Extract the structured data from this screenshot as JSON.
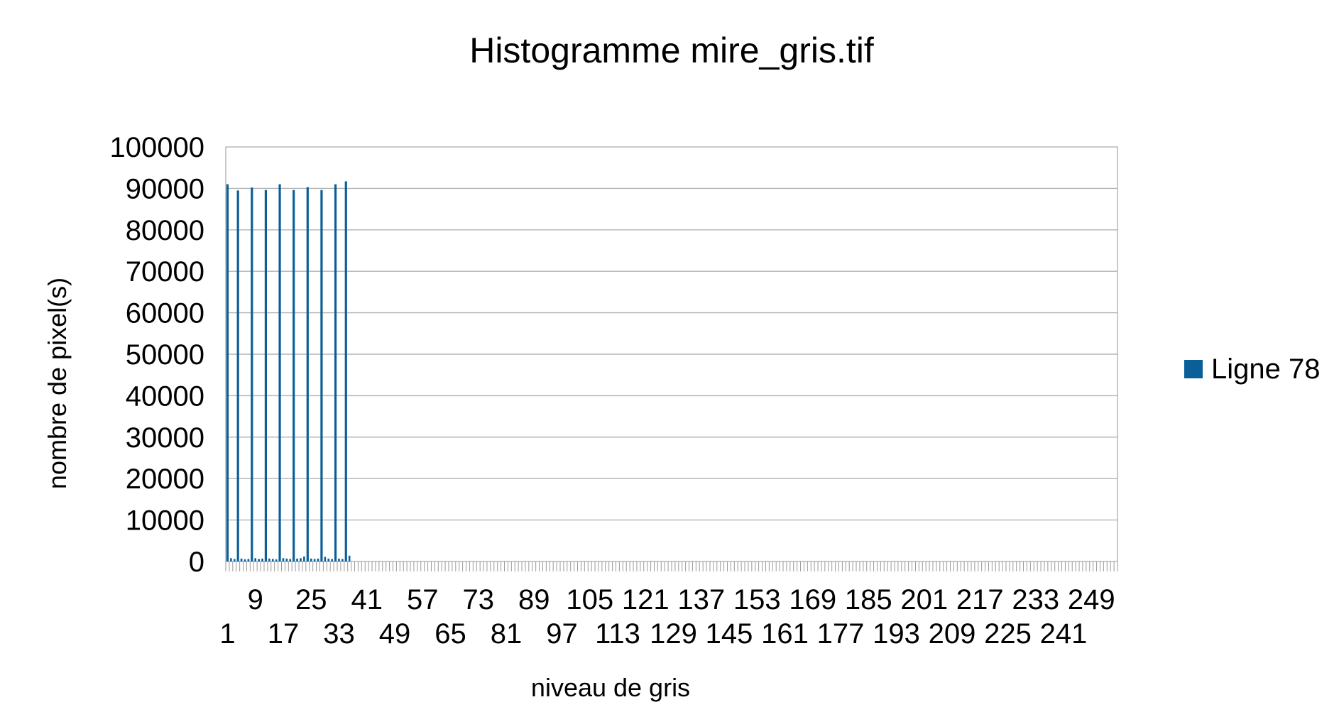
{
  "chart_data": {
    "type": "bar",
    "title": "Histogramme  mire_gris.tif",
    "xlabel": "niveau de gris",
    "ylabel": "nombre de pixel(s)",
    "ylim": [
      0,
      100000
    ],
    "yticks": [
      0,
      10000,
      20000,
      30000,
      40000,
      50000,
      60000,
      70000,
      80000,
      90000,
      100000
    ],
    "x_range": [
      1,
      256
    ],
    "x_tick_labels_upper": [
      "9",
      "25",
      "41",
      "57",
      "73",
      "89",
      "105",
      "121",
      "137",
      "153",
      "169",
      "185",
      "201",
      "217",
      "233",
      "249"
    ],
    "x_tick_labels_lower": [
      "1",
      "17",
      "33",
      "49",
      "65",
      "81",
      "97",
      "113",
      "129",
      "145",
      "161",
      "177",
      "193",
      "209",
      "225",
      "241"
    ],
    "grid": "horizontal",
    "legend_position": "right",
    "series": [
      {
        "name": "Ligne 78",
        "color": "#0b5f99",
        "default_value": 0,
        "points": [
          {
            "x": 1,
            "y": 91000
          },
          {
            "x": 2,
            "y": 800
          },
          {
            "x": 3,
            "y": 600
          },
          {
            "x": 4,
            "y": 89500
          },
          {
            "x": 5,
            "y": 700
          },
          {
            "x": 6,
            "y": 500
          },
          {
            "x": 7,
            "y": 600
          },
          {
            "x": 8,
            "y": 90200
          },
          {
            "x": 9,
            "y": 800
          },
          {
            "x": 10,
            "y": 600
          },
          {
            "x": 11,
            "y": 700
          },
          {
            "x": 12,
            "y": 89600
          },
          {
            "x": 13,
            "y": 700
          },
          {
            "x": 14,
            "y": 600
          },
          {
            "x": 15,
            "y": 500
          },
          {
            "x": 16,
            "y": 91000
          },
          {
            "x": 17,
            "y": 800
          },
          {
            "x": 18,
            "y": 700
          },
          {
            "x": 19,
            "y": 600
          },
          {
            "x": 20,
            "y": 89600
          },
          {
            "x": 21,
            "y": 700
          },
          {
            "x": 22,
            "y": 800
          },
          {
            "x": 23,
            "y": 1200
          },
          {
            "x": 24,
            "y": 90300
          },
          {
            "x": 25,
            "y": 700
          },
          {
            "x": 26,
            "y": 600
          },
          {
            "x": 27,
            "y": 700
          },
          {
            "x": 28,
            "y": 89600
          },
          {
            "x": 29,
            "y": 1100
          },
          {
            "x": 30,
            "y": 700
          },
          {
            "x": 31,
            "y": 600
          },
          {
            "x": 32,
            "y": 91000
          },
          {
            "x": 33,
            "y": 700
          },
          {
            "x": 34,
            "y": 600
          },
          {
            "x": 35,
            "y": 91700
          },
          {
            "x": 36,
            "y": 1400
          }
        ]
      }
    ]
  }
}
